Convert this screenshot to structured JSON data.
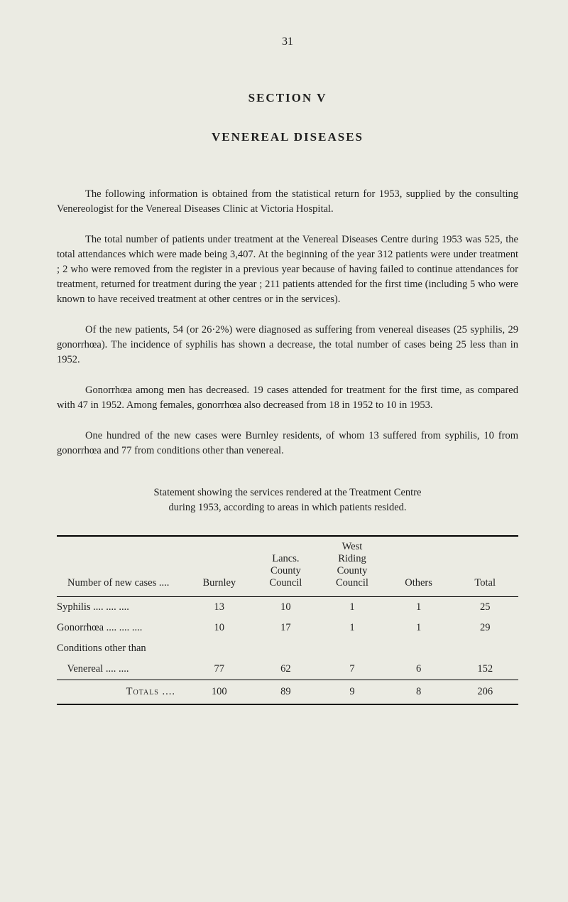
{
  "page_number": "31",
  "section_title": "SECTION V",
  "section_subtitle": "VENEREAL DISEASES",
  "paragraphs": {
    "p1": "The following information is obtained from the statistical return for 1953, supplied by the consulting Venereologist for the Venereal Diseases Clinic at Victoria Hospital.",
    "p2": "The total number of patients under treatment at the Venereal Diseases Centre during 1953 was 525, the total attendances which were made being 3,407. At the beginning of the year 312 patients were under treatment ; 2 who were removed from the register in a previous year because of having failed to continue attendances for treatment, returned for treatment during the year ; 211 patients attended for the first time (including 5 who were known to have received treatment at other centres or in the services).",
    "p3": "Of the new patients, 54 (or 26·2%) were diagnosed as suffering from venereal diseases (25 syphilis, 29 gonorrhœa). The incidence of syphilis has shown a decrease, the total number of cases being 25 less than in 1952.",
    "p4": "Gonorrhœa among men has decreased. 19 cases attended for treatment for the first time, as compared with 47 in 1952. Among females, gonorrhœa also decreased from 18 in 1952 to 10 in 1953.",
    "p5": "One hundred of the new cases were Burnley residents, of whom 13 suffered from syphilis, 10 from gonorrhœa and 77 from conditions other than venereal."
  },
  "statement": {
    "line1": "Statement showing the services rendered at the Treatment Centre",
    "line2": "during 1953, according to areas in which patients resided."
  },
  "table": {
    "headers": {
      "col1": "Number of new cases   ....",
      "col2": "Burnley",
      "col3_line1": "Lancs.",
      "col3_line2": "County",
      "col3_line3": "Council",
      "col4_line1": "West",
      "col4_line2": "Riding",
      "col4_line3": "County",
      "col4_line4": "Council",
      "col5": "Others",
      "col6": "Total"
    },
    "rows": [
      {
        "label": "Syphilis        ....      ....      ....",
        "c1": "13",
        "c2": "10",
        "c3": "1",
        "c4": "1",
        "c5": "25"
      },
      {
        "label": "Gonorrhœa ....      ....      ....",
        "c1": "10",
        "c2": "17",
        "c3": "1",
        "c4": "1",
        "c5": "29"
      },
      {
        "label": "Conditions other than",
        "c1": "",
        "c2": "",
        "c3": "",
        "c4": "",
        "c5": ""
      },
      {
        "label": "    Venereal        ....      ....",
        "c1": "77",
        "c2": "62",
        "c3": "7",
        "c4": "6",
        "c5": "152"
      }
    ],
    "totals": {
      "label": "Totals   ....",
      "c1": "100",
      "c2": "89",
      "c3": "9",
      "c4": "8",
      "c5": "206"
    }
  },
  "colors": {
    "background": "#ebebe3",
    "text": "#1f1f1f",
    "border": "#000000"
  }
}
